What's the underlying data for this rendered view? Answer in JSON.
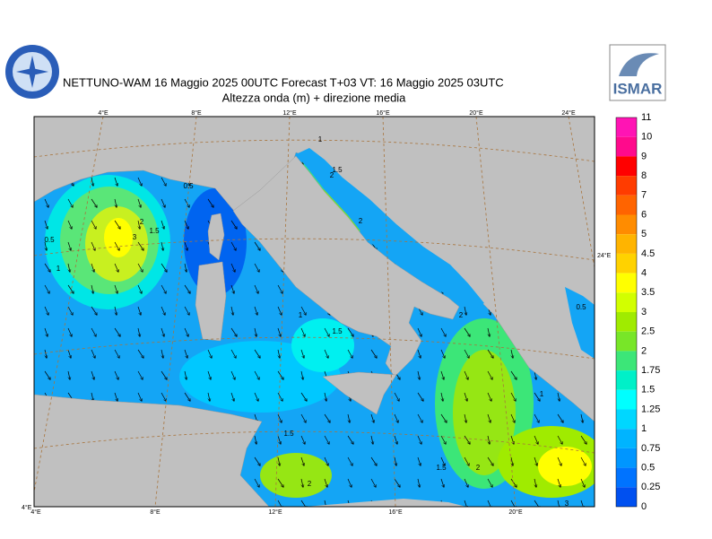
{
  "header": {
    "title": "NETTUNO-WAM  16   Maggio  2025 00UTC Forecast T+03 VT: 16   Maggio  2025 03UTC",
    "subtitle": "Altezza onda (m) + direzione media",
    "logo_right": "ISMAR"
  },
  "map": {
    "lon_top": [
      "4°E",
      "8°E",
      "12°E",
      "16°E",
      "20°E",
      "24°E"
    ],
    "lon_bottom": [
      "4°E",
      "8°E",
      "12°E",
      "16°E",
      "20°E"
    ],
    "lon_right": "24°E",
    "corner": "4°E",
    "contour_labels": [
      "0.5",
      "1",
      "2",
      "3",
      "1.5",
      "0.5",
      "1",
      "1.5",
      "2",
      "2",
      "1",
      "1.5",
      "2",
      "0.5",
      "1",
      "1.5",
      "2",
      "1.5",
      "2",
      "3"
    ]
  },
  "colorbar": {
    "labels": [
      "11",
      "10",
      "9",
      "8",
      "7",
      "6",
      "5",
      "4.5",
      "4",
      "3.5",
      "3",
      "2.5",
      "2",
      "1.75",
      "1.5",
      "1.25",
      "1",
      "0.75",
      "0.5",
      "0.25",
      "0"
    ],
    "colors": [
      "#ff14b4",
      "#ff0a8c",
      "#ff0000",
      "#ff3c00",
      "#ff6400",
      "#ff8c00",
      "#ffb400",
      "#ffd200",
      "#ffff00",
      "#d2ff00",
      "#a0eb00",
      "#78e628",
      "#3ce678",
      "#00f0c8",
      "#00ffff",
      "#00d7ff",
      "#00b4ff",
      "#0096ff",
      "#0073ff",
      "#0050f0"
    ]
  }
}
